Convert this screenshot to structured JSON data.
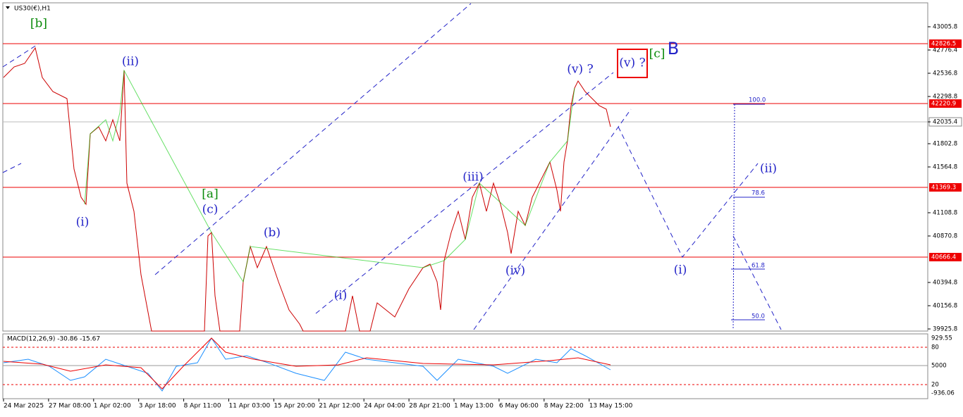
{
  "header": {
    "symbol": "US30(€),H1"
  },
  "price_scale": [
    "43005.8",
    "42776.4",
    "42536.8",
    "42298.8",
    "42035.4",
    "41802.8",
    "41564.8",
    "41108.8",
    "40870.8",
    "40394.8",
    "40156.8",
    "39925.8"
  ],
  "price_levels": [
    "42826.5",
    "42220.9",
    "41369.3",
    "40666.4"
  ],
  "fib": [
    "100.0",
    "78.6",
    "61.8",
    "50.0"
  ],
  "waves": [
    "[b]",
    "(ii)",
    "(i)",
    "[a]",
    "(c)",
    "(b)",
    "(i)",
    "(iii)",
    "(iv)",
    "(v) ?",
    "(v) ?",
    "[c]",
    "B",
    "(i)",
    "(ii)"
  ],
  "macd": {
    "label": "MACD(12,26,9) -30.86 -15.67",
    "scale": [
      "929.55",
      "80",
      "5000",
      "20",
      "-936.06"
    ]
  },
  "dates": [
    "24 Mar 2025",
    "27 Mar 08:00",
    "1 Apr 02:00",
    "3 Apr 18:00",
    "8 Apr 11:00",
    "11 Apr 03:00",
    "15 Apr 20:00",
    "21 Apr 12:00",
    "24 Apr 04:00",
    "28 Apr 21:00",
    "1 May 13:00",
    "6 May 06:00",
    "8 May 22:00",
    "13 May 15:00"
  ]
}
